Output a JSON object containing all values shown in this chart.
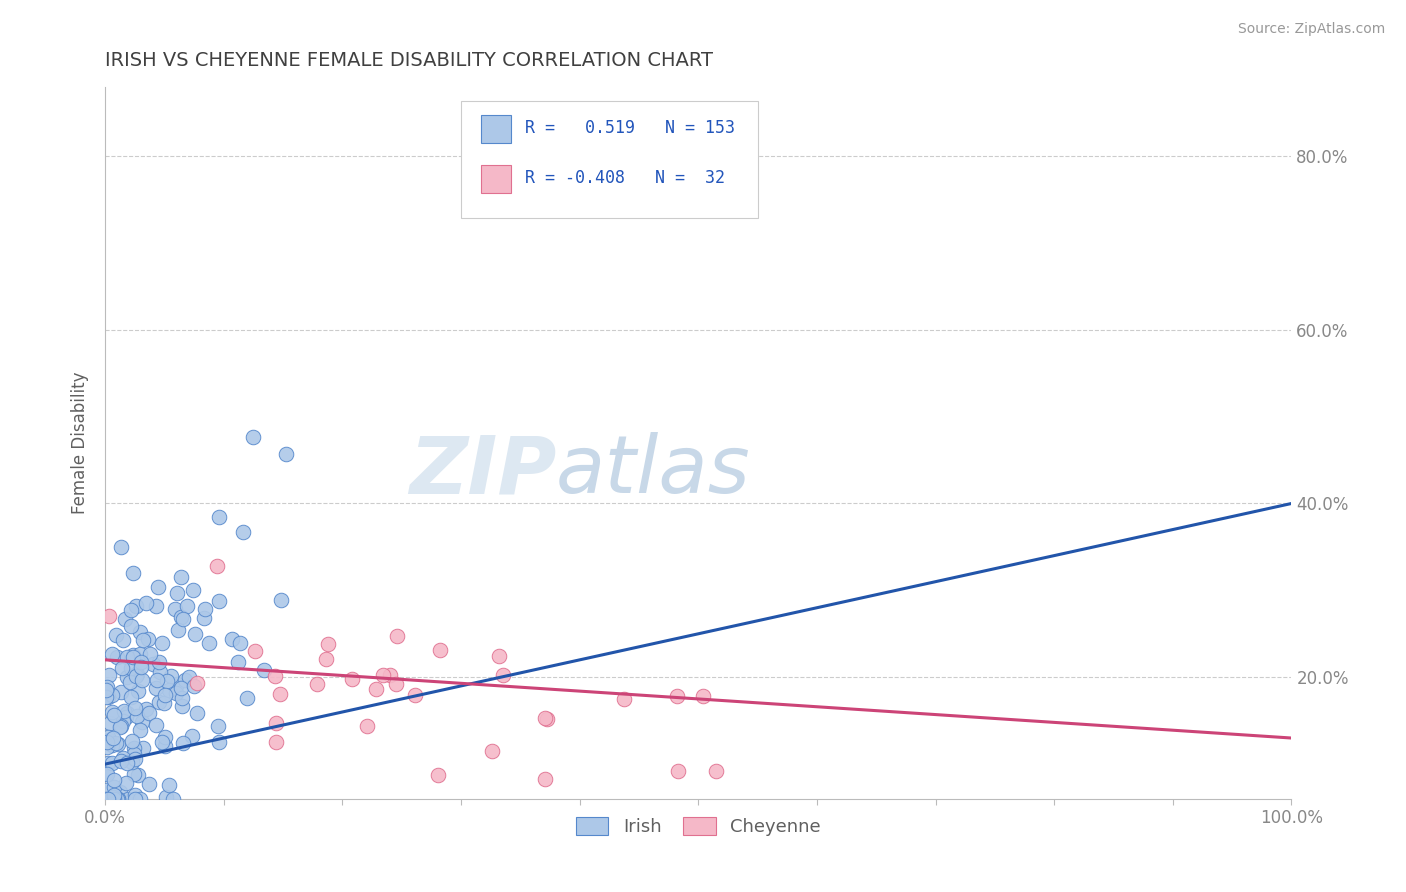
{
  "title": "IRISH VS CHEYENNE FEMALE DISABILITY CORRELATION CHART",
  "source": "Source: ZipAtlas.com",
  "ylabel": "Female Disability",
  "irish_R": 0.519,
  "irish_N": 153,
  "cheyenne_R": -0.408,
  "cheyenne_N": 32,
  "xlim": [
    0.0,
    1.0
  ],
  "ylim": [
    0.06,
    0.88
  ],
  "xticks": [
    0.0,
    0.1,
    0.2,
    0.3,
    0.4,
    0.5,
    0.6,
    0.7,
    0.8,
    0.9,
    1.0
  ],
  "yticks": [
    0.2,
    0.4,
    0.6,
    0.8
  ],
  "irish_color": "#adc8e8",
  "irish_edge_color": "#5588cc",
  "irish_line_color": "#2255aa",
  "cheyenne_color": "#f5b8c8",
  "cheyenne_edge_color": "#e07090",
  "cheyenne_line_color": "#cc4477",
  "background_color": "#ffffff",
  "title_color": "#404040",
  "title_fontsize": 14,
  "axis_label_color": "#606060",
  "tick_color": "#888888",
  "watermark_zip": "ZIP",
  "watermark_atlas": "atlas",
  "legend_R_color": "#2255bb",
  "legend_label_irish": "Irish",
  "legend_label_cheyenne": "Cheyenne",
  "irish_trend_start_y": 0.1,
  "irish_trend_end_y": 0.4,
  "cheyenne_trend_start_y": 0.22,
  "cheyenne_trend_end_y": 0.13
}
